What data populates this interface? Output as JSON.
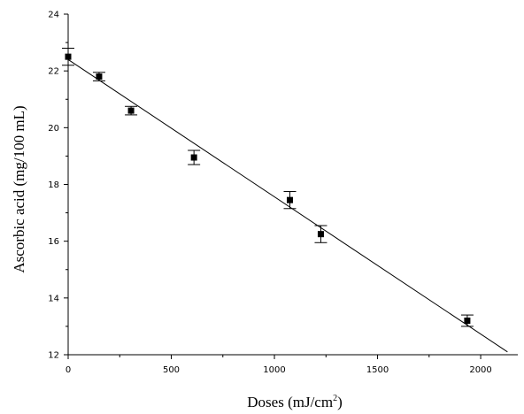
{
  "chart_data": {
    "type": "scatter",
    "xlabel": "Doses (mJ/cm",
    "xlabel_sup": "2",
    "xlabel_end": ")",
    "ylabel": "Ascorbic acid (mg/100 mL)",
    "xlim": [
      0,
      2180
    ],
    "ylim": [
      12,
      24
    ],
    "x_ticks": [
      0,
      500,
      1000,
      1500,
      2000
    ],
    "x_tick_labels": [
      "0",
      "500",
      "1000",
      "1500",
      "2000"
    ],
    "y_ticks": [
      12,
      14,
      16,
      18,
      20,
      22,
      24
    ],
    "y_tick_labels": [
      "12",
      "14",
      "16",
      "18",
      "20",
      "22",
      "24"
    ],
    "grid": false,
    "legend": "none",
    "points": [
      {
        "x": 0,
        "y": 22.5,
        "err": 0.3
      },
      {
        "x": 150,
        "y": 21.8,
        "err": 0.15
      },
      {
        "x": 305,
        "y": 20.6,
        "err": 0.15
      },
      {
        "x": 610,
        "y": 18.95,
        "err": 0.25
      },
      {
        "x": 1075,
        "y": 17.45,
        "err": 0.3
      },
      {
        "x": 1225,
        "y": 16.25,
        "err": 0.3
      },
      {
        "x": 1935,
        "y": 13.2,
        "err": 0.2
      }
    ],
    "fit_line": {
      "x": [
        0,
        2130
      ],
      "y": [
        22.4,
        12.1
      ]
    },
    "colors": {
      "marker": "#000000",
      "line": "#000000",
      "axis": "#000000"
    }
  }
}
